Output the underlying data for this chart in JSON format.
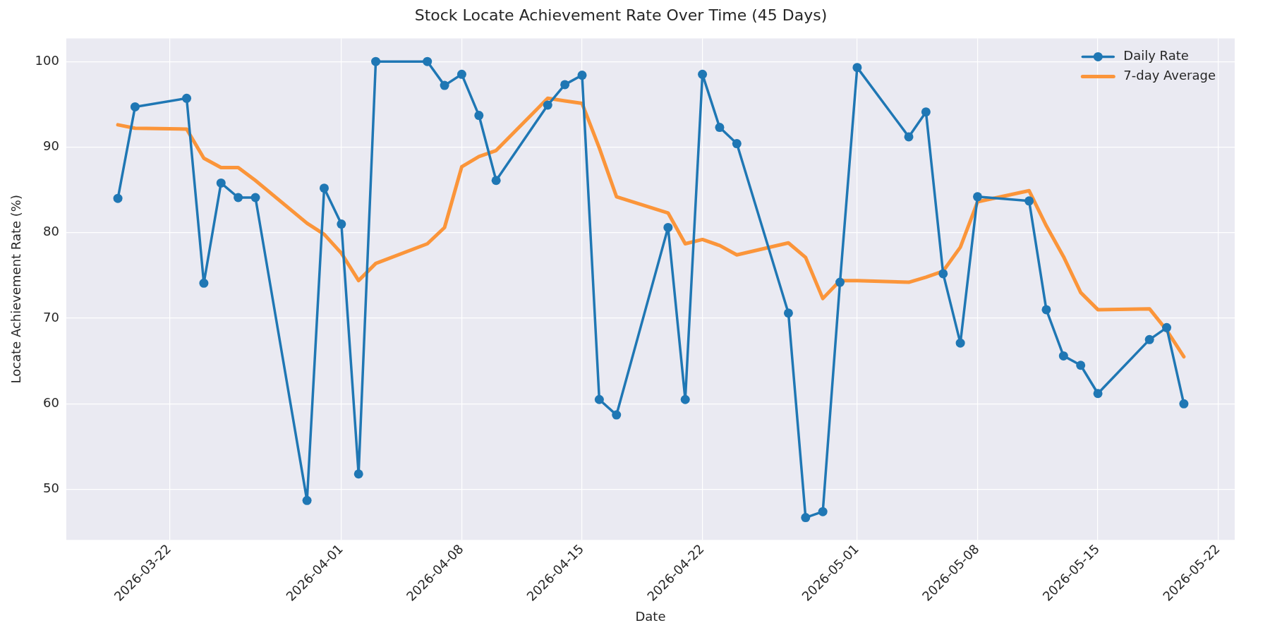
{
  "chart_data": {
    "type": "line",
    "title": "Stock Locate Achievement Rate Over Time (45 Days)",
    "xlabel": "Date",
    "ylabel": "Locate Achievement Rate (%)",
    "x": [
      "2026-03-19",
      "2026-03-20",
      "2026-03-23",
      "2026-03-24",
      "2026-03-25",
      "2026-03-26",
      "2026-03-27",
      "2026-03-30",
      "2026-03-31",
      "2026-04-01",
      "2026-04-02",
      "2026-04-03",
      "2026-04-06",
      "2026-04-07",
      "2026-04-08",
      "2026-04-09",
      "2026-04-10",
      "2026-04-13",
      "2026-04-14",
      "2026-04-15",
      "2026-04-16",
      "2026-04-17",
      "2026-04-20",
      "2026-04-21",
      "2026-04-22",
      "2026-04-23",
      "2026-04-24",
      "2026-04-27",
      "2026-04-28",
      "2026-04-29",
      "2026-04-30",
      "2026-05-01",
      "2026-05-04",
      "2026-05-05",
      "2026-05-06",
      "2026-05-07",
      "2026-05-08",
      "2026-05-11",
      "2026-05-12",
      "2026-05-13",
      "2026-05-14",
      "2026-05-15",
      "2026-05-18",
      "2026-05-19",
      "2026-05-20"
    ],
    "series": [
      {
        "name": "Daily Rate",
        "color": "#1f77b4",
        "marker": "circle",
        "values": [
          84.0,
          94.7,
          95.7,
          74.1,
          85.8,
          84.1,
          84.1,
          48.7,
          85.2,
          81.0,
          51.8,
          100,
          100,
          97.2,
          98.5,
          93.7,
          86.1,
          94.9,
          97.3,
          98.4,
          60.5,
          58.7,
          80.6,
          60.5,
          98.5,
          92.3,
          90.4,
          70.6,
          46.7,
          47.4,
          74.2,
          99.3,
          91.2,
          94.1,
          75.2,
          67.1,
          84.2,
          83.7,
          71.0,
          65.6,
          64.5,
          61.2,
          67.5,
          68.9,
          60.0
        ]
      },
      {
        "name": "7-day Average",
        "color": "#fb953a",
        "marker": "none",
        "values": [
          92.6,
          92.2,
          92.1,
          88.7,
          87.6,
          87.6,
          86.1,
          81.1,
          79.8,
          77.6,
          74.4,
          76.4,
          78.7,
          80.6,
          87.7,
          88.9,
          89.6,
          95.7,
          95.4,
          95.1,
          89.9,
          84.2,
          82.3,
          78.7,
          79.2,
          78.5,
          77.4,
          78.8,
          77.1,
          72.3,
          74.4,
          74.4,
          74.2,
          74.8,
          75.5,
          78.3,
          83.6,
          84.9,
          80.8,
          77.2,
          73.0,
          71.0,
          71.1,
          68.6,
          65.5
        ]
      }
    ],
    "xlim": [
      "2026-03-16",
      "2026-05-22T23:00"
    ],
    "xticks": [
      "2026-03-22",
      "2026-04-01",
      "2026-04-08",
      "2026-04-15",
      "2026-04-22",
      "2026-05-01",
      "2026-05-08",
      "2026-05-15",
      "2026-05-22"
    ],
    "ylim": [
      44.1,
      102.7
    ],
    "yticks": [
      50,
      60,
      70,
      80,
      90,
      100
    ],
    "grid": true,
    "legend": "top right",
    "line_style": "solid"
  }
}
